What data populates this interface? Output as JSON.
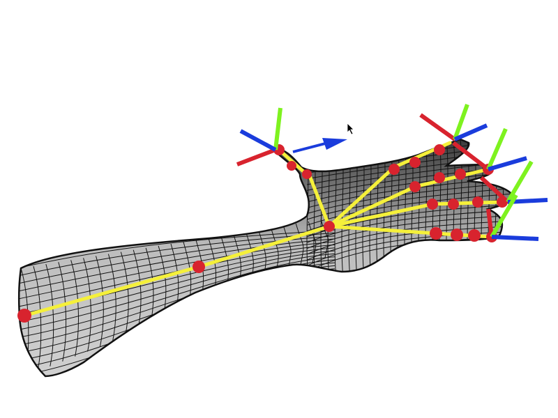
{
  "viewport": {
    "background": "#ffffff"
  },
  "colors": {
    "mesh_fill_light": "#e8e8e8",
    "mesh_fill_dark": "#555555",
    "mesh_line": "#111111",
    "bone": "#f5f03a",
    "joint": "#d8232e",
    "axis_x": "#d8232e",
    "axis_y": "#7ef21f",
    "axis_z": "#1a3cdc"
  },
  "icons": {
    "cursor": "mouse-pointer-icon",
    "move_gizmo": "arrow-gizmo-icon"
  }
}
